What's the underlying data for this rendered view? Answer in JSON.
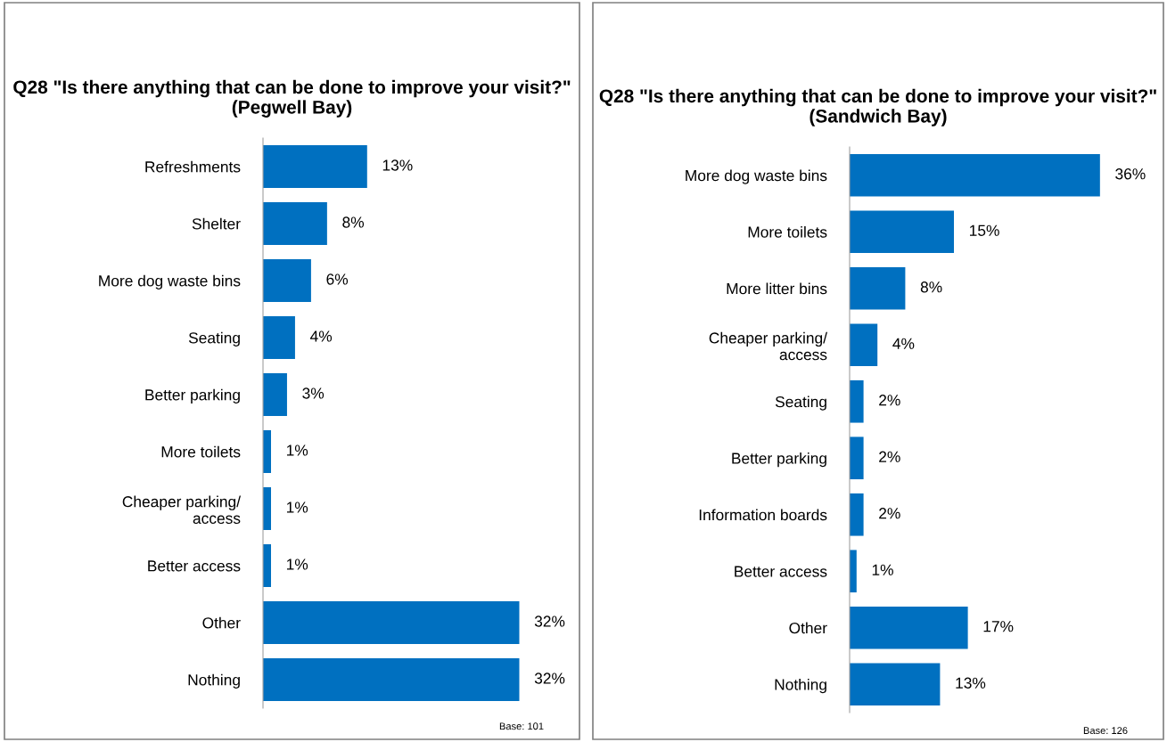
{
  "chart_data": [
    {
      "type": "bar",
      "orientation": "horizontal",
      "title": "Q28 \"Is there anything that can be done to improve your visit?\"\n(Pegwell Bay)",
      "categories": [
        "Refreshments",
        "Shelter",
        "More dog waste bins",
        "Seating",
        "Better parking",
        "More toilets",
        "Cheaper parking/\naccess",
        "Better access",
        "Other",
        "Nothing"
      ],
      "values": [
        13,
        8,
        6,
        4,
        3,
        1,
        1,
        1,
        32,
        32
      ],
      "color": "#0070c0",
      "value_labels": [
        "13%",
        "8%",
        "6%",
        "4%",
        "3%",
        "1%",
        "1%",
        "1%",
        "32%",
        "32%"
      ],
      "annotations": [
        "Base: 101"
      ],
      "grid": false,
      "legend": false,
      "tick_labels": "y"
    },
    {
      "type": "bar",
      "orientation": "horizontal",
      "title": "Q28 \"Is there anything that can be done to improve your visit?\"\n(Sandwich Bay)",
      "categories": [
        "More dog waste bins",
        "More toilets",
        "More litter bins",
        "Cheaper parking/\naccess",
        "Seating",
        "Better parking",
        "Information boards",
        "Better access",
        "Other",
        "Nothing"
      ],
      "values": [
        36,
        15,
        8,
        4,
        2,
        2,
        2,
        1,
        17,
        13
      ],
      "color": "#0070c0",
      "value_labels": [
        "36%",
        "15%",
        "8%",
        "4%",
        "2%",
        "2%",
        "2%",
        "1%",
        "17%",
        "13%"
      ],
      "annotations": [
        "Base: 126"
      ],
      "grid": false,
      "legend": false,
      "tick_labels": "y"
    }
  ]
}
